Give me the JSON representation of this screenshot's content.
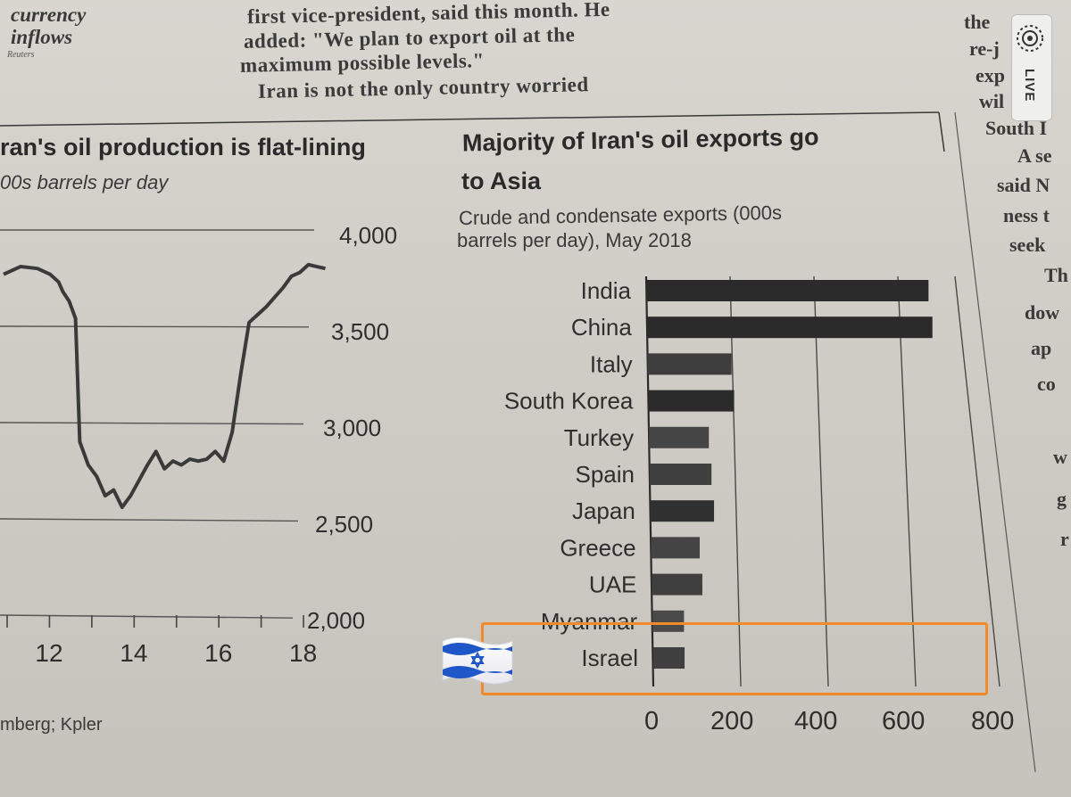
{
  "article": {
    "sidebar_head_1": "currency",
    "sidebar_head_2": "inflows",
    "sidebar_credit": "Reuters",
    "col_line_1": "first vice-president, said this month. He",
    "col_line_2": "added: \"We plan to export oil at the",
    "col_line_3": "maximum possible levels.\"",
    "col_line_4": "Iran is not the only country worried",
    "right_lines": [
      "the",
      "re-j",
      "exp",
      "wil",
      "South I",
      "A se",
      "said N",
      "ness t",
      "seek",
      "Th",
      "dow",
      "ap",
      "co",
      "w",
      "g",
      "r"
    ]
  },
  "live_badge": {
    "label": "LIVE",
    "icon": "live-broadcast-icon"
  },
  "annotation": {
    "emoji": "🇮🇱",
    "flag_icon": "israel-flag-icon",
    "highlight_color": "#f08a2a",
    "highlight_target": "Israel"
  },
  "source_text": "mberg; Kpler",
  "chart_data": [
    {
      "type": "line",
      "title": "ran's oil production is flat-lining",
      "subtitle": "00s barrels per day",
      "y_ticks": [
        "4,000",
        "3,500",
        "3,000",
        "2,500",
        "2,000"
      ],
      "x_ticks": [
        "12",
        "14",
        "16",
        "18"
      ],
      "ylim": [
        2000,
        4000
      ],
      "xlim": [
        2011,
        2018.8
      ],
      "series": [
        {
          "name": "Iran oil production",
          "x": [
            2011,
            2011.4,
            2011.8,
            2012.1,
            2012.3,
            2012.4,
            2012.55,
            2012.7,
            2012.8,
            2013.0,
            2013.2,
            2013.4,
            2013.6,
            2013.8,
            2014.0,
            2014.2,
            2014.4,
            2014.6,
            2014.8,
            2015.0,
            2015.2,
            2015.4,
            2015.6,
            2015.8,
            2016.0,
            2016.2,
            2016.4,
            2016.6,
            2016.8,
            2017.0,
            2017.2,
            2017.4,
            2017.6,
            2017.8,
            2018.0,
            2018.2,
            2018.4,
            2018.6
          ],
          "values": [
            3770,
            3810,
            3800,
            3770,
            3730,
            3680,
            3630,
            3540,
            2900,
            2780,
            2720,
            2620,
            2650,
            2560,
            2620,
            2700,
            2780,
            2850,
            2760,
            2800,
            2780,
            2810,
            2800,
            2810,
            2850,
            2800,
            2950,
            3250,
            3520,
            3560,
            3600,
            3650,
            3700,
            3760,
            3780,
            3820,
            3810,
            3800
          ]
        }
      ]
    },
    {
      "type": "bar",
      "orientation": "horizontal",
      "title_line_1": "Majority of Iran's oil exports go",
      "title_line_2": "to Asia",
      "subtitle_line_1": "Crude and condensate exports (000s",
      "subtitle_line_2": "barrels per day), May 2018",
      "categories": [
        "India",
        "China",
        "Italy",
        "South Korea",
        "Turkey",
        "Spain",
        "Japan",
        "Greece",
        "UAE",
        "Myanmar",
        "Israel"
      ],
      "values": [
        650,
        660,
        195,
        200,
        140,
        145,
        150,
        115,
        120,
        75,
        75
      ],
      "bar_colors": [
        "#2b2b2b",
        "#2b2b2b",
        "#3e3e3e",
        "#2b2b2b",
        "#454545",
        "#404040",
        "#303030",
        "#444444",
        "#3f3f3f",
        "#4a4a4a",
        "#404040"
      ],
      "x_ticks": [
        "0",
        "200",
        "400",
        "600",
        "800"
      ],
      "xlim": [
        0,
        800
      ]
    }
  ]
}
